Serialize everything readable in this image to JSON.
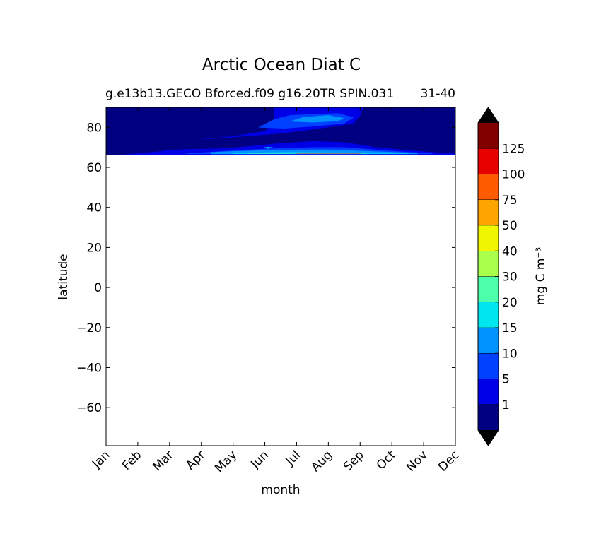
{
  "chart_data": {
    "type": "heatmap",
    "title": "Arctic Ocean Diat C",
    "subtitle_left": "g.e13b13.GECO Bforced.f09 g16.20TR SPIN.031",
    "subtitle_right": "31-40",
    "xlabel": "month",
    "ylabel": "latitude",
    "x_ticks": [
      "Jan",
      "Feb",
      "Mar",
      "Apr",
      "May",
      "Jun",
      "Jul",
      "Aug",
      "Sep",
      "Oct",
      "Nov",
      "Dec"
    ],
    "x_range": [
      1,
      12
    ],
    "y_ticks": [
      80,
      60,
      40,
      20,
      0,
      -20,
      -40,
      -60
    ],
    "y_range": [
      -79,
      90
    ],
    "data_lat_range": [
      66.3,
      90
    ],
    "colorbar": {
      "label": "mg C m⁻³",
      "levels": [
        "1",
        "5",
        "10",
        "15",
        "20",
        "30",
        "40",
        "50",
        "75",
        "100",
        "125"
      ],
      "colors": [
        "#000080",
        "#0000e6",
        "#0040ff",
        "#0092ff",
        "#00e6f0",
        "#4cffaa",
        "#aaff4c",
        "#f0f600",
        "#ffa500",
        "#ff5c00",
        "#e60000",
        "#800000"
      ],
      "extend_colors": {
        "min": "#000000",
        "max": "#000000"
      }
    },
    "regions": [
      {
        "level": 1,
        "desc": "low band",
        "points": [
          [
            3.5,
            69
          ],
          [
            4.5,
            69.3
          ],
          [
            5.5,
            70.5
          ],
          [
            6.5,
            72
          ],
          [
            7.5,
            73
          ],
          [
            8.5,
            72.5
          ],
          [
            9.5,
            70
          ],
          [
            10.5,
            68.5
          ],
          [
            11.5,
            67.3
          ],
          [
            12,
            66.8
          ],
          [
            12,
            66.3
          ],
          [
            1.5,
            66.3
          ],
          [
            2.6,
            67.8
          ],
          [
            3.0,
            68.6
          ]
        ]
      },
      {
        "level": 1,
        "desc": "upper tongue",
        "points": [
          [
            4.0,
            74
          ],
          [
            5.0,
            75.5
          ],
          [
            6.0,
            78
          ],
          [
            6.3,
            83
          ],
          [
            6.3,
            90
          ],
          [
            9.1,
            90
          ],
          [
            9.0,
            86
          ],
          [
            8.8,
            82
          ],
          [
            7.5,
            79
          ],
          [
            6.5,
            77
          ],
          [
            5.3,
            75.5
          ],
          [
            4.5,
            74.5
          ]
        ]
      },
      {
        "level": 2,
        "desc": "band",
        "points": [
          [
            4.6,
            68
          ],
          [
            5.5,
            68.8
          ],
          [
            6.5,
            69.5
          ],
          [
            7.5,
            70
          ],
          [
            8.5,
            70
          ],
          [
            9.5,
            68.8
          ],
          [
            10.3,
            67.8
          ],
          [
            11,
            67.2
          ],
          [
            11.3,
            66.8
          ],
          [
            3.5,
            66.8
          ]
        ]
      },
      {
        "level": 2,
        "desc": "upper",
        "points": [
          [
            5.8,
            80
          ],
          [
            6.3,
            84
          ],
          [
            6.8,
            86
          ],
          [
            7.5,
            86.5
          ],
          [
            8.3,
            87
          ],
          [
            8.8,
            85
          ],
          [
            8.5,
            82
          ],
          [
            7.5,
            80.5
          ],
          [
            6.6,
            79.5
          ]
        ]
      },
      {
        "level": 3,
        "desc": "band",
        "points": [
          [
            4.3,
            67.5
          ],
          [
            5.0,
            68
          ],
          [
            6.0,
            68.5
          ],
          [
            7.0,
            68.8
          ],
          [
            8.0,
            68.8
          ],
          [
            9.0,
            68.2
          ],
          [
            10.0,
            67.6
          ],
          [
            10.8,
            67.1
          ],
          [
            10.8,
            66.7
          ],
          [
            4.3,
            66.7
          ]
        ]
      },
      {
        "level": 3,
        "desc": "blob",
        "points": [
          [
            6.8,
            83
          ],
          [
            7.2,
            85
          ],
          [
            8.0,
            86
          ],
          [
            8.5,
            84.5
          ],
          [
            8.3,
            83.2
          ],
          [
            7.5,
            82.5
          ]
        ]
      },
      {
        "level": 4,
        "desc": "line",
        "points": [
          [
            5.0,
            67.1
          ],
          [
            6.0,
            67.4
          ],
          [
            7.0,
            67.5
          ],
          [
            8.0,
            67.4
          ],
          [
            9.0,
            67.3
          ],
          [
            10.0,
            67.2
          ],
          [
            10.5,
            67.0
          ],
          [
            5.0,
            66.9
          ]
        ]
      },
      {
        "level": 4,
        "desc": "spot",
        "points": [
          [
            5.9,
            69.7
          ],
          [
            6.1,
            70.1
          ],
          [
            6.3,
            69.8
          ],
          [
            6.1,
            69.5
          ]
        ]
      },
      {
        "level": 5,
        "desc": "line",
        "points": [
          [
            5.5,
            67.1
          ],
          [
            6.5,
            67.2
          ],
          [
            7.5,
            67.25
          ],
          [
            8.5,
            67.2
          ],
          [
            9.2,
            67.1
          ],
          [
            9.2,
            66.95
          ],
          [
            5.5,
            66.95
          ]
        ]
      },
      {
        "level": 9,
        "desc": "line",
        "points": [
          [
            7.0,
            67.05
          ],
          [
            8.5,
            67.1
          ],
          [
            9.0,
            67.0
          ],
          [
            7.0,
            66.98
          ]
        ]
      }
    ]
  }
}
